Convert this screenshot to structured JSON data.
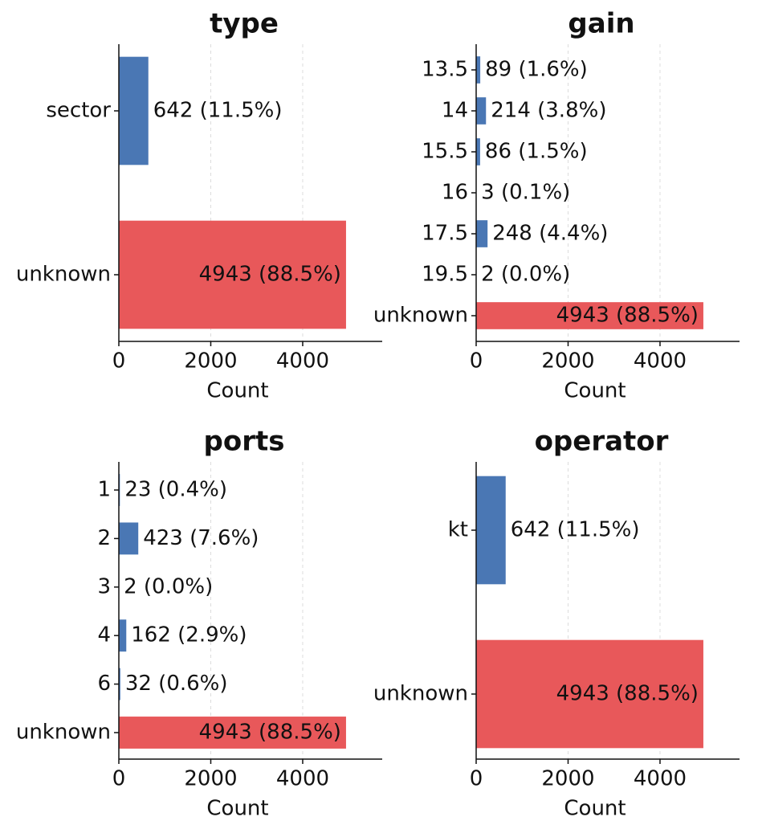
{
  "chart_data": [
    {
      "type": "barh",
      "title": "type",
      "xlabel": "Count",
      "categories": [
        "sector",
        "unknown"
      ],
      "values": [
        642,
        4943
      ],
      "value_labels": [
        "642 (11.5%)",
        "4943 (88.5%)"
      ],
      "colors": [
        "#4a77b4",
        "#e8585a"
      ],
      "xlim": [
        0,
        5730
      ],
      "xticks": [
        0,
        2000,
        4000
      ],
      "grid": true
    },
    {
      "type": "barh",
      "title": "gain",
      "xlabel": "Count",
      "categories": [
        "13.5",
        "14",
        "15.5",
        "16",
        "17.5",
        "19.5",
        "unknown"
      ],
      "values": [
        89,
        214,
        86,
        3,
        248,
        2,
        4943
      ],
      "value_labels": [
        "89 (1.6%)",
        "214 (3.8%)",
        "86 (1.5%)",
        "3 (0.1%)",
        "248 (4.4%)",
        "2 (0.0%)",
        "4943 (88.5%)"
      ],
      "colors": [
        "#4a77b4",
        "#4a77b4",
        "#4a77b4",
        "#4a77b4",
        "#4a77b4",
        "#4a77b4",
        "#e8585a"
      ],
      "xlim": [
        0,
        5730
      ],
      "xticks": [
        0,
        2000,
        4000
      ],
      "grid": true
    },
    {
      "type": "barh",
      "title": "ports",
      "xlabel": "Count",
      "categories": [
        "1",
        "2",
        "3",
        "4",
        "6",
        "unknown"
      ],
      "values": [
        23,
        423,
        2,
        162,
        32,
        4943
      ],
      "value_labels": [
        "23 (0.4%)",
        "423 (7.6%)",
        "2 (0.0%)",
        "162 (2.9%)",
        "32 (0.6%)",
        "4943 (88.5%)"
      ],
      "colors": [
        "#4a77b4",
        "#4a77b4",
        "#4a77b4",
        "#4a77b4",
        "#4a77b4",
        "#e8585a"
      ],
      "xlim": [
        0,
        5730
      ],
      "xticks": [
        0,
        2000,
        4000
      ],
      "grid": true
    },
    {
      "type": "barh",
      "title": "operator",
      "xlabel": "Count",
      "categories": [
        "kt",
        "unknown"
      ],
      "values": [
        642,
        4943
      ],
      "value_labels": [
        "642 (11.5%)",
        "4943 (88.5%)"
      ],
      "colors": [
        "#4a77b4",
        "#e8585a"
      ],
      "xlim": [
        0,
        5730
      ],
      "xticks": [
        0,
        2000,
        4000
      ],
      "grid": true
    }
  ]
}
